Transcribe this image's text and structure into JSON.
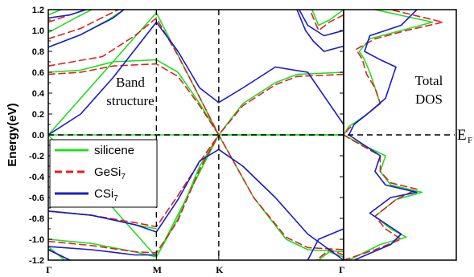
{
  "chart_data": [
    {
      "type": "line",
      "panel": "band structure",
      "ylabel": "Energy(eV)",
      "ylim": [
        -1.2,
        1.2
      ],
      "yticks": [
        "1.2",
        "1.0",
        "0.8",
        "0.6",
        "0.4",
        "0.2",
        "0.0",
        "-0.2",
        "-0.4",
        "-0.6",
        "-0.8",
        "-1.0",
        "-1.2"
      ],
      "x_ticks": [
        {
          "label": "Γ",
          "pos": 0.0
        },
        {
          "label": "M",
          "pos": 1.0
        },
        {
          "label": "K",
          "pos": 1.577
        },
        {
          "label": "Γ",
          "pos": 2.732
        }
      ],
      "annotation": [
        "Band",
        "structure"
      ],
      "fermi_label": "E",
      "fermi_sub": "F",
      "legend_placement": "center-left",
      "series": [
        {
          "name": "silicene",
          "color": "#22dd22",
          "dash": "solid",
          "bands": [
            [
              [
                0.0,
                0.0
              ],
              [
                0.5,
                0.0
              ],
              [
                1.0,
                0.0
              ],
              [
                1.577,
                0.0
              ],
              [
                2.732,
                0.0
              ]
            ],
            [
              [
                0.0,
                0.0
              ],
              [
                1.0,
                1.17
              ],
              [
                1.577,
                0.0
              ],
              [
                2.732,
                0.0
              ]
            ],
            [
              [
                0.0,
                0.0
              ],
              [
                1.0,
                -1.17
              ],
              [
                1.577,
                0.0
              ],
              [
                2.732,
                0.0
              ]
            ],
            [
              [
                0.0,
                0.6
              ],
              [
                0.3,
                0.62
              ],
              [
                0.6,
                0.7
              ],
              [
                1.0,
                0.72
              ],
              [
                1.2,
                0.6
              ],
              [
                1.4,
                0.3
              ],
              [
                1.577,
                0.0
              ],
              [
                1.8,
                0.3
              ],
              [
                2.1,
                0.5
              ],
              [
                2.3,
                0.58
              ],
              [
                2.732,
                0.6
              ]
            ],
            [
              [
                0.0,
                -0.73
              ],
              [
                0.4,
                -0.77
              ],
              [
                0.8,
                -0.86
              ],
              [
                1.0,
                -0.9
              ]
            ],
            [
              [
                0.0,
                -1.0
              ],
              [
                0.4,
                -1.04
              ],
              [
                0.8,
                -1.12
              ],
              [
                1.0,
                -1.17
              ],
              [
                1.2,
                -0.8
              ],
              [
                1.4,
                -0.3
              ],
              [
                1.577,
                0.0
              ],
              [
                1.9,
                -0.6
              ],
              [
                2.2,
                -1.0
              ],
              [
                2.4,
                -1.1
              ],
              [
                2.732,
                -1.12
              ]
            ],
            [
              [
                0.0,
                1.15
              ],
              [
                0.12,
                1.2
              ]
            ],
            [
              [
                0.0,
                0.98
              ],
              [
                0.25,
                1.12
              ],
              [
                0.4,
                1.2
              ]
            ],
            [
              [
                0.0,
                0.84
              ],
              [
                0.3,
                0.96
              ],
              [
                0.55,
                1.1
              ],
              [
                0.7,
                1.2
              ]
            ],
            [
              [
                0.0,
                -1.07
              ],
              [
                0.15,
                -1.2
              ]
            ],
            [
              [
                2.732,
                1.2
              ],
              [
                2.6,
                1.1
              ],
              [
                2.5,
                1.05
              ],
              [
                2.44,
                1.2
              ]
            ],
            [
              [
                2.732,
                -1.17
              ],
              [
                2.6,
                -1.12
              ],
              [
                2.5,
                -1.2
              ]
            ]
          ]
        },
        {
          "name": "GeSi",
          "sub": "7",
          "color": "#dd2222",
          "dash": "dashed",
          "bands": [
            [
              [
                0.0,
                0.58
              ],
              [
                0.3,
                0.6
              ],
              [
                0.6,
                0.66
              ],
              [
                1.0,
                0.68
              ],
              [
                1.2,
                0.56
              ],
              [
                1.4,
                0.28
              ],
              [
                1.577,
                0.0
              ],
              [
                1.8,
                0.28
              ],
              [
                2.1,
                0.48
              ],
              [
                2.3,
                0.56
              ],
              [
                2.732,
                0.58
              ]
            ],
            [
              [
                0.0,
                0.66
              ],
              [
                0.5,
                0.75
              ],
              [
                0.8,
                0.95
              ],
              [
                1.0,
                1.12
              ],
              [
                1.2,
                0.76
              ],
              [
                1.4,
                0.36
              ],
              [
                1.577,
                0.0
              ]
            ],
            [
              [
                0.0,
                -0.73
              ],
              [
                0.4,
                -0.77
              ],
              [
                0.8,
                -0.84
              ],
              [
                1.0,
                -0.88
              ],
              [
                1.2,
                -0.58
              ],
              [
                1.4,
                -0.26
              ],
              [
                1.577,
                0.0
              ]
            ],
            [
              [
                0.0,
                -1.02
              ],
              [
                0.4,
                -1.06
              ],
              [
                0.8,
                -1.12
              ],
              [
                1.0,
                -1.13
              ],
              [
                1.2,
                -0.82
              ],
              [
                1.4,
                -0.33
              ],
              [
                1.577,
                0.0
              ],
              [
                1.9,
                -0.6
              ],
              [
                2.2,
                -0.98
              ],
              [
                2.4,
                -1.08
              ],
              [
                2.732,
                -1.1
              ]
            ],
            [
              [
                0.0,
                1.08
              ],
              [
                0.2,
                1.15
              ],
              [
                0.35,
                1.2
              ]
            ],
            [
              [
                0.0,
                0.92
              ],
              [
                0.3,
                1.02
              ],
              [
                0.55,
                1.15
              ],
              [
                0.65,
                1.2
              ]
            ],
            [
              [
                0.0,
                -1.1
              ],
              [
                0.2,
                -1.2
              ]
            ],
            [
              [
                2.732,
                1.15
              ],
              [
                2.6,
                1.08
              ],
              [
                2.5,
                1.0
              ],
              [
                2.42,
                1.2
              ]
            ],
            [
              [
                2.732,
                -1.15
              ],
              [
                2.6,
                -1.1
              ],
              [
                2.48,
                -1.2
              ]
            ]
          ]
        },
        {
          "name": "CSi",
          "sub": "7",
          "color": "#1a1acc",
          "dash": "solid",
          "bands": [
            [
              [
                0.0,
                0.0
              ],
              [
                0.3,
                0.2
              ],
              [
                0.6,
                0.55
              ],
              [
                1.0,
                1.08
              ],
              [
                1.2,
                0.8
              ],
              [
                1.4,
                0.45
              ],
              [
                1.577,
                0.31
              ],
              [
                1.8,
                0.45
              ],
              [
                2.1,
                0.65
              ],
              [
                2.4,
                0.6
              ],
              [
                2.732,
                0.1
              ]
            ],
            [
              [
                0.0,
                -0.73
              ],
              [
                0.4,
                -0.77
              ],
              [
                0.8,
                -0.86
              ],
              [
                1.0,
                -0.93
              ],
              [
                1.2,
                -0.62
              ],
              [
                1.4,
                -0.25
              ],
              [
                1.577,
                -0.14
              ],
              [
                1.8,
                -0.3
              ],
              [
                2.1,
                -0.6
              ],
              [
                2.4,
                -0.95
              ],
              [
                2.732,
                -1.2
              ]
            ],
            [
              [
                0.0,
                -1.07
              ],
              [
                0.4,
                -1.1
              ],
              [
                0.8,
                -1.15
              ],
              [
                1.0,
                -1.15
              ]
            ],
            [
              [
                0.0,
                1.12
              ],
              [
                0.2,
                1.15
              ],
              [
                0.35,
                1.2
              ]
            ],
            [
              [
                0.0,
                0.84
              ],
              [
                0.3,
                0.96
              ],
              [
                0.6,
                1.12
              ],
              [
                0.7,
                1.2
              ]
            ],
            [
              [
                0.0,
                -1.1
              ],
              [
                0.2,
                -1.2
              ]
            ],
            [
              [
                2.732,
                1.0
              ],
              [
                2.55,
                0.95
              ],
              [
                2.4,
                1.05
              ],
              [
                2.32,
                1.2
              ]
            ],
            [
              [
                2.732,
                0.85
              ],
              [
                2.55,
                0.8
              ],
              [
                2.45,
                0.9
              ],
              [
                2.38,
                1.0
              ],
              [
                2.3,
                1.2
              ]
            ],
            [
              [
                2.732,
                -0.9
              ],
              [
                2.5,
                -1.0
              ],
              [
                2.4,
                -1.2
              ]
            ]
          ]
        }
      ]
    },
    {
      "type": "line",
      "panel": "total DOS",
      "annotation": [
        "Total",
        "DOS"
      ],
      "ylim": [
        -1.2,
        1.2
      ],
      "series": [
        {
          "name": "silicene",
          "color": "#22dd22",
          "dash": "solid",
          "points": [
            [
              0.05,
              -1.2
            ],
            [
              0.35,
              -1.05
            ],
            [
              0.6,
              -0.98
            ],
            [
              0.45,
              -0.9
            ],
            [
              0.3,
              -0.78
            ],
            [
              0.5,
              -0.62
            ],
            [
              0.75,
              -0.55
            ],
            [
              0.45,
              -0.48
            ],
            [
              0.35,
              -0.35
            ],
            [
              0.4,
              -0.2
            ],
            [
              0.15,
              -0.08
            ],
            [
              0.0,
              0.0
            ],
            [
              0.05,
              0.08
            ],
            [
              0.2,
              0.18
            ],
            [
              0.35,
              0.3
            ],
            [
              0.3,
              0.45
            ],
            [
              0.25,
              0.6
            ],
            [
              0.2,
              0.72
            ],
            [
              0.15,
              0.8
            ],
            [
              0.25,
              0.92
            ],
            [
              0.55,
              1.0
            ],
            [
              0.85,
              1.08
            ],
            [
              0.3,
              1.2
            ]
          ]
        },
        {
          "name": "GeSi",
          "sub": "7",
          "color": "#dd2222",
          "dash": "dashed",
          "points": [
            [
              0.0,
              -1.2
            ],
            [
              0.3,
              -1.1
            ],
            [
              0.55,
              -1.0
            ],
            [
              0.4,
              -0.9
            ],
            [
              0.3,
              -0.78
            ],
            [
              0.5,
              -0.62
            ],
            [
              0.7,
              -0.52
            ],
            [
              0.45,
              -0.46
            ],
            [
              0.35,
              -0.35
            ],
            [
              0.35,
              -0.2
            ],
            [
              0.1,
              -0.06
            ],
            [
              0.0,
              0.0
            ],
            [
              0.05,
              0.06
            ],
            [
              0.2,
              0.18
            ],
            [
              0.35,
              0.3
            ],
            [
              0.3,
              0.45
            ],
            [
              0.22,
              0.58
            ],
            [
              0.18,
              0.72
            ],
            [
              0.12,
              0.82
            ],
            [
              0.3,
              0.92
            ],
            [
              0.6,
              1.0
            ],
            [
              0.95,
              1.08
            ],
            [
              0.45,
              1.2
            ]
          ]
        },
        {
          "name": "CSi",
          "sub": "7",
          "color": "#1a1acc",
          "dash": "solid",
          "points": [
            [
              0.1,
              -1.2
            ],
            [
              0.45,
              -1.05
            ],
            [
              0.55,
              -0.95
            ],
            [
              0.4,
              -0.85
            ],
            [
              0.25,
              -0.75
            ],
            [
              0.45,
              -0.6
            ],
            [
              0.7,
              -0.55
            ],
            [
              0.4,
              -0.48
            ],
            [
              0.3,
              -0.35
            ],
            [
              0.35,
              -0.2
            ],
            [
              0.2,
              -0.1
            ],
            [
              0.05,
              0.0
            ],
            [
              0.1,
              0.1
            ],
            [
              0.25,
              0.22
            ],
            [
              0.4,
              0.35
            ],
            [
              0.45,
              0.5
            ],
            [
              0.5,
              0.65
            ],
            [
              0.35,
              0.72
            ],
            [
              0.2,
              0.8
            ],
            [
              0.25,
              0.95
            ],
            [
              0.55,
              1.05
            ],
            [
              0.7,
              1.2
            ]
          ]
        }
      ]
    }
  ]
}
